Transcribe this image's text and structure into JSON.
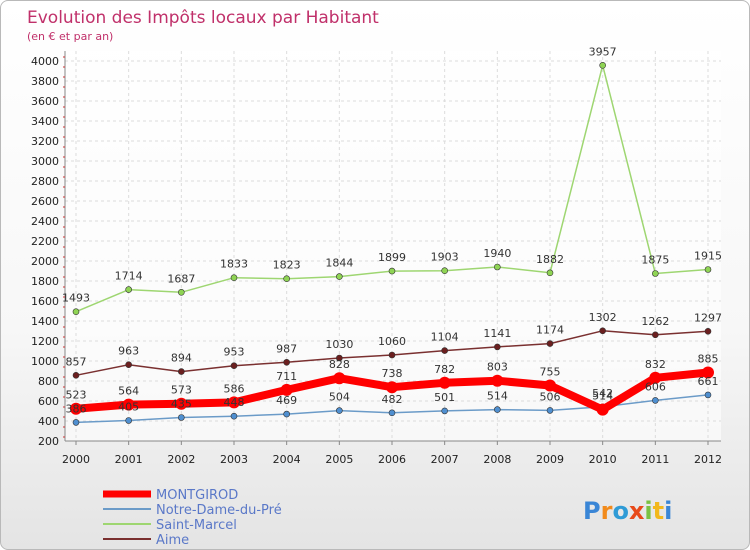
{
  "chart_data": {
    "type": "line",
    "title": "Evolution des Impôts locaux par Habitant",
    "subtitle": "(en € et par an)",
    "categories": [
      "2000",
      "2001",
      "2002",
      "2003",
      "2004",
      "2005",
      "2006",
      "2007",
      "2008",
      "2009",
      "2010",
      "2011",
      "2012"
    ],
    "ylim": [
      200,
      4000
    ],
    "yticks": [
      200,
      400,
      600,
      800,
      1000,
      1200,
      1400,
      1600,
      1800,
      2000,
      2200,
      2400,
      2600,
      2800,
      3000,
      3200,
      3400,
      3600,
      3800,
      4000
    ],
    "grid": true,
    "legend_position": "bottom-left",
    "series": [
      {
        "name": "Notre-Dame-du-Pré",
        "color": "#6b9bc8",
        "marker": "#4f8fd0",
        "values": [
          386,
          405,
          435,
          448,
          469,
          504,
          482,
          501,
          514,
          506,
          542,
          606,
          661
        ]
      },
      {
        "name": "Saint-Marcel",
        "color": "#9ed671",
        "marker": "#8fd454",
        "values": [
          1493,
          1714,
          1687,
          1833,
          1823,
          1844,
          1899,
          1903,
          1940,
          1882,
          3957,
          1875,
          1915
        ]
      },
      {
        "name": "Aime",
        "color": "#7a3030",
        "marker": "#6b1f1f",
        "values": [
          857,
          963,
          894,
          953,
          987,
          1030,
          1060,
          1104,
          1141,
          1174,
          1302,
          1262,
          1297
        ]
      },
      {
        "name": "MONTGIROD",
        "color": "#ff0000",
        "marker": "#ff0000",
        "values": [
          523,
          564,
          573,
          586,
          711,
          828,
          738,
          782,
          803,
          755,
          514,
          832,
          885
        ]
      }
    ],
    "legend_order": [
      "MONTGIROD",
      "Notre-Dame-du-Pré",
      "Saint-Marcel",
      "Aime"
    ]
  },
  "logo": {
    "text": "Proxiti"
  }
}
